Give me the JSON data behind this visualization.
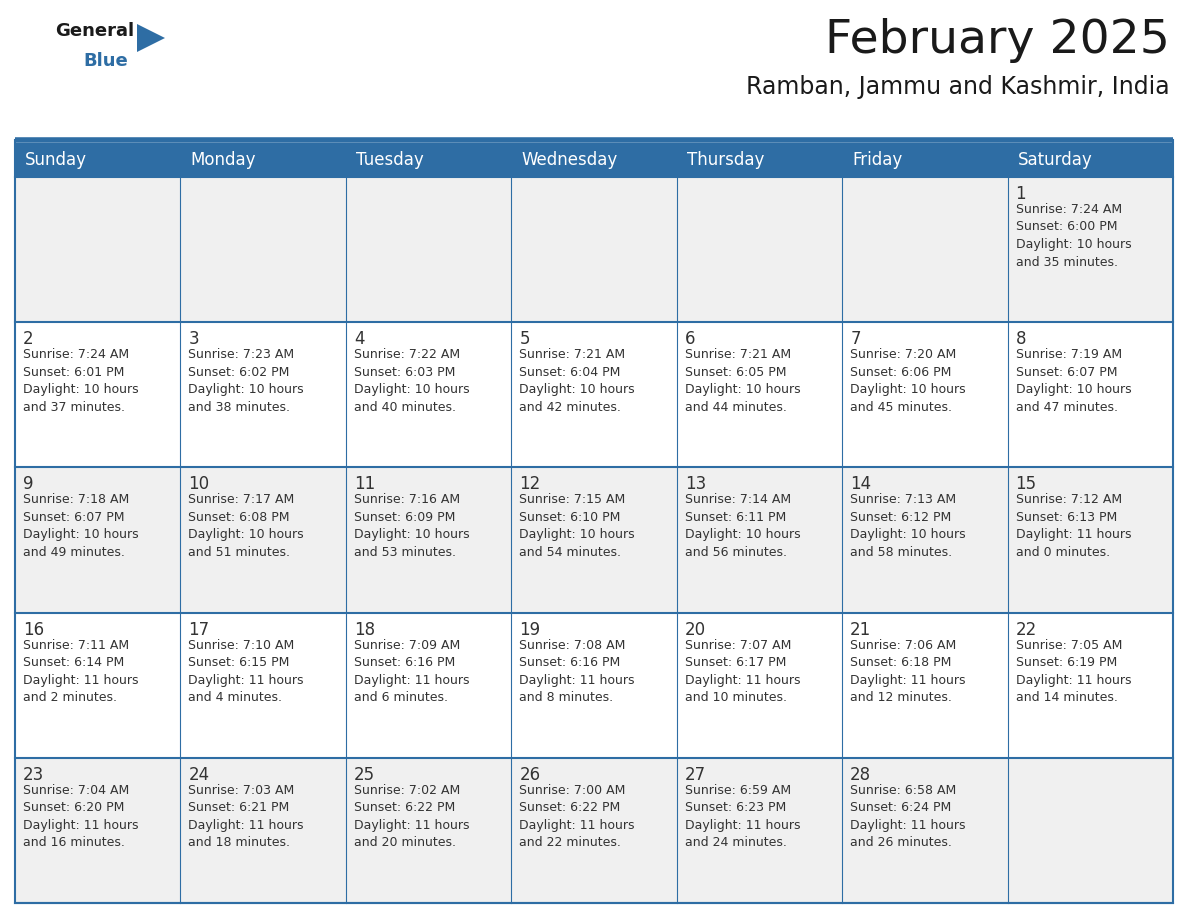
{
  "title": "February 2025",
  "subtitle": "Ramban, Jammu and Kashmir, India",
  "header_bg": "#2E6DA4",
  "header_text": "#FFFFFF",
  "cell_bg_light": "#F0F0F0",
  "cell_bg_white": "#FFFFFF",
  "divider_color": "#2E6DA4",
  "text_color": "#333333",
  "days_of_week": [
    "Sunday",
    "Monday",
    "Tuesday",
    "Wednesday",
    "Thursday",
    "Friday",
    "Saturday"
  ],
  "weeks": [
    [
      {
        "day": "",
        "info": ""
      },
      {
        "day": "",
        "info": ""
      },
      {
        "day": "",
        "info": ""
      },
      {
        "day": "",
        "info": ""
      },
      {
        "day": "",
        "info": ""
      },
      {
        "day": "",
        "info": ""
      },
      {
        "day": "1",
        "info": "Sunrise: 7:24 AM\nSunset: 6:00 PM\nDaylight: 10 hours\nand 35 minutes."
      }
    ],
    [
      {
        "day": "2",
        "info": "Sunrise: 7:24 AM\nSunset: 6:01 PM\nDaylight: 10 hours\nand 37 minutes."
      },
      {
        "day": "3",
        "info": "Sunrise: 7:23 AM\nSunset: 6:02 PM\nDaylight: 10 hours\nand 38 minutes."
      },
      {
        "day": "4",
        "info": "Sunrise: 7:22 AM\nSunset: 6:03 PM\nDaylight: 10 hours\nand 40 minutes."
      },
      {
        "day": "5",
        "info": "Sunrise: 7:21 AM\nSunset: 6:04 PM\nDaylight: 10 hours\nand 42 minutes."
      },
      {
        "day": "6",
        "info": "Sunrise: 7:21 AM\nSunset: 6:05 PM\nDaylight: 10 hours\nand 44 minutes."
      },
      {
        "day": "7",
        "info": "Sunrise: 7:20 AM\nSunset: 6:06 PM\nDaylight: 10 hours\nand 45 minutes."
      },
      {
        "day": "8",
        "info": "Sunrise: 7:19 AM\nSunset: 6:07 PM\nDaylight: 10 hours\nand 47 minutes."
      }
    ],
    [
      {
        "day": "9",
        "info": "Sunrise: 7:18 AM\nSunset: 6:07 PM\nDaylight: 10 hours\nand 49 minutes."
      },
      {
        "day": "10",
        "info": "Sunrise: 7:17 AM\nSunset: 6:08 PM\nDaylight: 10 hours\nand 51 minutes."
      },
      {
        "day": "11",
        "info": "Sunrise: 7:16 AM\nSunset: 6:09 PM\nDaylight: 10 hours\nand 53 minutes."
      },
      {
        "day": "12",
        "info": "Sunrise: 7:15 AM\nSunset: 6:10 PM\nDaylight: 10 hours\nand 54 minutes."
      },
      {
        "day": "13",
        "info": "Sunrise: 7:14 AM\nSunset: 6:11 PM\nDaylight: 10 hours\nand 56 minutes."
      },
      {
        "day": "14",
        "info": "Sunrise: 7:13 AM\nSunset: 6:12 PM\nDaylight: 10 hours\nand 58 minutes."
      },
      {
        "day": "15",
        "info": "Sunrise: 7:12 AM\nSunset: 6:13 PM\nDaylight: 11 hours\nand 0 minutes."
      }
    ],
    [
      {
        "day": "16",
        "info": "Sunrise: 7:11 AM\nSunset: 6:14 PM\nDaylight: 11 hours\nand 2 minutes."
      },
      {
        "day": "17",
        "info": "Sunrise: 7:10 AM\nSunset: 6:15 PM\nDaylight: 11 hours\nand 4 minutes."
      },
      {
        "day": "18",
        "info": "Sunrise: 7:09 AM\nSunset: 6:16 PM\nDaylight: 11 hours\nand 6 minutes."
      },
      {
        "day": "19",
        "info": "Sunrise: 7:08 AM\nSunset: 6:16 PM\nDaylight: 11 hours\nand 8 minutes."
      },
      {
        "day": "20",
        "info": "Sunrise: 7:07 AM\nSunset: 6:17 PM\nDaylight: 11 hours\nand 10 minutes."
      },
      {
        "day": "21",
        "info": "Sunrise: 7:06 AM\nSunset: 6:18 PM\nDaylight: 11 hours\nand 12 minutes."
      },
      {
        "day": "22",
        "info": "Sunrise: 7:05 AM\nSunset: 6:19 PM\nDaylight: 11 hours\nand 14 minutes."
      }
    ],
    [
      {
        "day": "23",
        "info": "Sunrise: 7:04 AM\nSunset: 6:20 PM\nDaylight: 11 hours\nand 16 minutes."
      },
      {
        "day": "24",
        "info": "Sunrise: 7:03 AM\nSunset: 6:21 PM\nDaylight: 11 hours\nand 18 minutes."
      },
      {
        "day": "25",
        "info": "Sunrise: 7:02 AM\nSunset: 6:22 PM\nDaylight: 11 hours\nand 20 minutes."
      },
      {
        "day": "26",
        "info": "Sunrise: 7:00 AM\nSunset: 6:22 PM\nDaylight: 11 hours\nand 22 minutes."
      },
      {
        "day": "27",
        "info": "Sunrise: 6:59 AM\nSunset: 6:23 PM\nDaylight: 11 hours\nand 24 minutes."
      },
      {
        "day": "28",
        "info": "Sunrise: 6:58 AM\nSunset: 6:24 PM\nDaylight: 11 hours\nand 26 minutes."
      },
      {
        "day": "",
        "info": ""
      }
    ]
  ],
  "logo_general_color": "#1a1a1a",
  "logo_blue_color": "#2E6DA4",
  "title_fontsize": 34,
  "subtitle_fontsize": 17,
  "header_fontsize": 12,
  "day_num_fontsize": 12,
  "info_fontsize": 9
}
